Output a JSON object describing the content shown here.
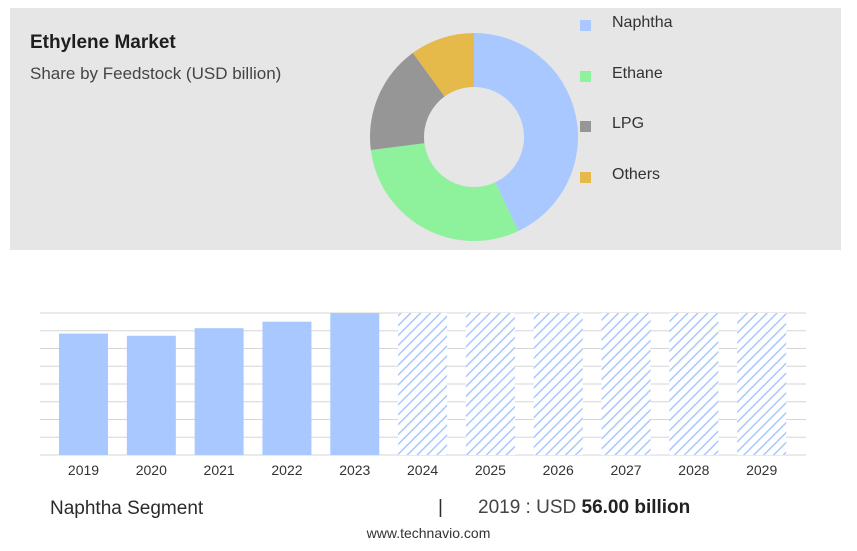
{
  "header": {
    "title": "Ethylene Market",
    "subtitle": "Share by Feedstock (USD billion)"
  },
  "legend": [
    {
      "label": "Naphtha",
      "color": "#a9c8ff"
    },
    {
      "label": "Ethane",
      "color": "#8ef29d"
    },
    {
      "label": "LPG",
      "color": "#969696"
    },
    {
      "label": "Others",
      "color": "#e6b94b"
    }
  ],
  "chart_data": [
    {
      "type": "pie",
      "variant": "donut",
      "categories": [
        "Naphtha",
        "Ethane",
        "LPG",
        "Others"
      ],
      "values": [
        43,
        30,
        17,
        10
      ],
      "colors": [
        "#a9c8ff",
        "#8ef29d",
        "#969696",
        "#e6b94b"
      ]
    },
    {
      "type": "bar",
      "categories": [
        "2019",
        "2020",
        "2021",
        "2022",
        "2023",
        "2024",
        "2025",
        "2026",
        "2027",
        "2028",
        "2029"
      ],
      "values": [
        56.0,
        55.0,
        58.5,
        61.5,
        65.5,
        65.5,
        65.5,
        65.5,
        65.5,
        65.5,
        65.5
      ],
      "forecast_from": "2024",
      "ylim": [
        0,
        65.5
      ],
      "grid": true,
      "bar_color": "#a9c8ff"
    }
  ],
  "footer": {
    "segment": "Naphtha Segment",
    "divider": "|",
    "value_prefix": "2019 : USD",
    "value_bold": "56.00 billion",
    "source": "www.technavio.com"
  }
}
